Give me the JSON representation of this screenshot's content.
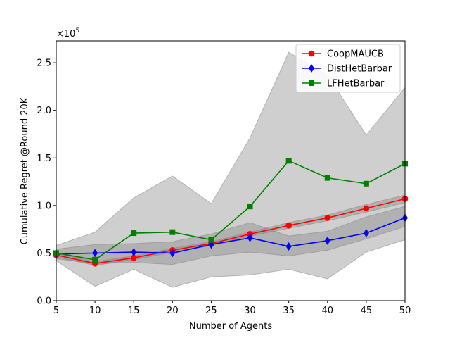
{
  "chart_data": {
    "type": "line",
    "title": "",
    "xlabel": "Number of Agents",
    "ylabel": "Cumulative Regret @Round 20K",
    "y_multiplier_label": "×10",
    "y_multiplier_exp": "5",
    "x": [
      5,
      10,
      15,
      20,
      25,
      30,
      35,
      40,
      45,
      50
    ],
    "xlim": [
      5,
      50
    ],
    "ylim": [
      0,
      2.73
    ],
    "x_ticks": [
      5,
      10,
      15,
      20,
      25,
      30,
      35,
      40,
      45,
      50
    ],
    "y_ticks": [
      0.0,
      0.5,
      1.0,
      1.5,
      2.0,
      2.5
    ],
    "y_tick_labels": [
      "0.0",
      "0.5",
      "1.0",
      "1.5",
      "2.0",
      "2.5"
    ],
    "grid": false,
    "legend_position": "top-right",
    "series": [
      {
        "name": "CoopMAUCB",
        "color": "#ff0000",
        "marker": "circle",
        "values": [
          0.48,
          0.39,
          0.45,
          0.53,
          0.6,
          0.7,
          0.79,
          0.87,
          0.97,
          1.07
        ],
        "band_low": [
          0.46,
          0.37,
          0.43,
          0.51,
          0.58,
          0.68,
          0.76,
          0.84,
          0.93,
          1.03
        ],
        "band_high": [
          0.5,
          0.41,
          0.47,
          0.55,
          0.62,
          0.72,
          0.82,
          0.9,
          1.01,
          1.11
        ]
      },
      {
        "name": "DistHetBarbar",
        "color": "#0000ff",
        "marker": "diamond",
        "values": [
          0.49,
          0.5,
          0.51,
          0.5,
          0.59,
          0.66,
          0.57,
          0.63,
          0.71,
          0.87
        ],
        "band_low": [
          0.44,
          0.39,
          0.4,
          0.38,
          0.47,
          0.51,
          0.47,
          0.53,
          0.65,
          0.78
        ],
        "band_high": [
          0.54,
          0.59,
          0.6,
          0.62,
          0.7,
          0.82,
          0.68,
          0.73,
          0.88,
          0.99
        ]
      },
      {
        "name": "LFHetBarbar",
        "color": "#008000",
        "marker": "square",
        "values": [
          0.5,
          0.43,
          0.71,
          0.72,
          0.64,
          0.99,
          1.47,
          1.29,
          1.23,
          1.44
        ],
        "band_low": [
          0.42,
          0.15,
          0.33,
          0.14,
          0.25,
          0.27,
          0.33,
          0.23,
          0.51,
          0.64
        ],
        "band_high": [
          0.58,
          0.72,
          1.08,
          1.31,
          1.02,
          1.71,
          2.61,
          2.37,
          1.74,
          2.24
        ]
      }
    ]
  }
}
